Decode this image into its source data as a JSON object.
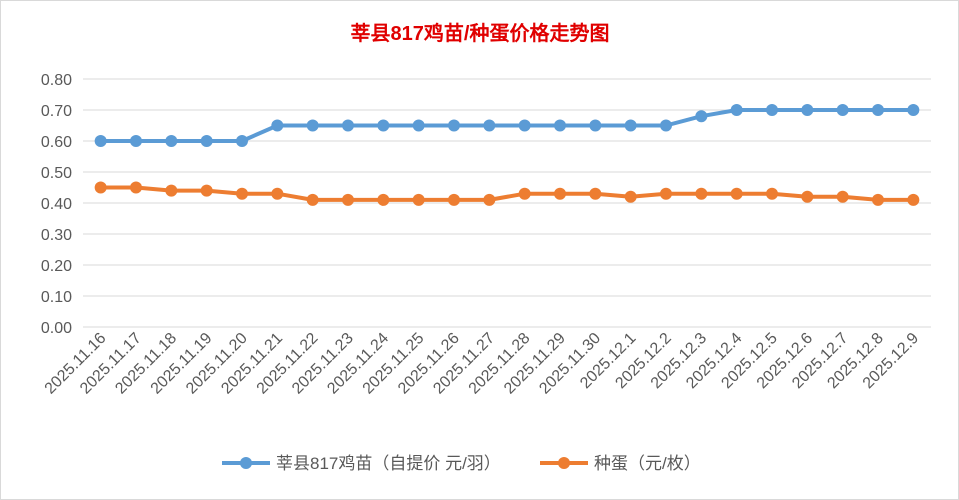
{
  "chart_data": {
    "type": "line",
    "title": "莘县817鸡苗/种蛋价格走势图",
    "xlabel": "",
    "ylabel": "",
    "ylim": [
      0,
      0.8
    ],
    "yticks": [
      "0.00",
      "0.10",
      "0.20",
      "0.30",
      "0.40",
      "0.50",
      "0.60",
      "0.70",
      "0.80"
    ],
    "grid": true,
    "legend_position": "bottom",
    "categories": [
      "2025.11.16",
      "2025.11.17",
      "2025.11.18",
      "2025.11.19",
      "2025.11.20",
      "2025.11.21",
      "2025.11.22",
      "2025.11.23",
      "2025.11.24",
      "2025.11.25",
      "2025.11.26",
      "2025.11.27",
      "2025.11.28",
      "2025.11.29",
      "2025.11.30",
      "2025.12.1",
      "2025.12.2",
      "2025.12.3",
      "2025.12.4",
      "2025.12.5",
      "2025.12.6",
      "2025.12.7",
      "2025.12.8",
      "2025.12.9"
    ],
    "series": [
      {
        "name": "莘县817鸡苗（自提价 元/羽）",
        "color": "#5b9bd5",
        "values": [
          0.6,
          0.6,
          0.6,
          0.6,
          0.6,
          0.65,
          0.65,
          0.65,
          0.65,
          0.65,
          0.65,
          0.65,
          0.65,
          0.65,
          0.65,
          0.65,
          0.65,
          0.68,
          0.7,
          0.7,
          0.7,
          0.7,
          0.7,
          0.7
        ]
      },
      {
        "name": "种蛋（元/枚）",
        "color": "#ed7d31",
        "values": [
          0.45,
          0.45,
          0.44,
          0.44,
          0.43,
          0.43,
          0.41,
          0.41,
          0.41,
          0.41,
          0.41,
          0.41,
          0.43,
          0.43,
          0.43,
          0.42,
          0.43,
          0.43,
          0.43,
          0.43,
          0.42,
          0.42,
          0.41,
          0.41
        ]
      }
    ]
  }
}
